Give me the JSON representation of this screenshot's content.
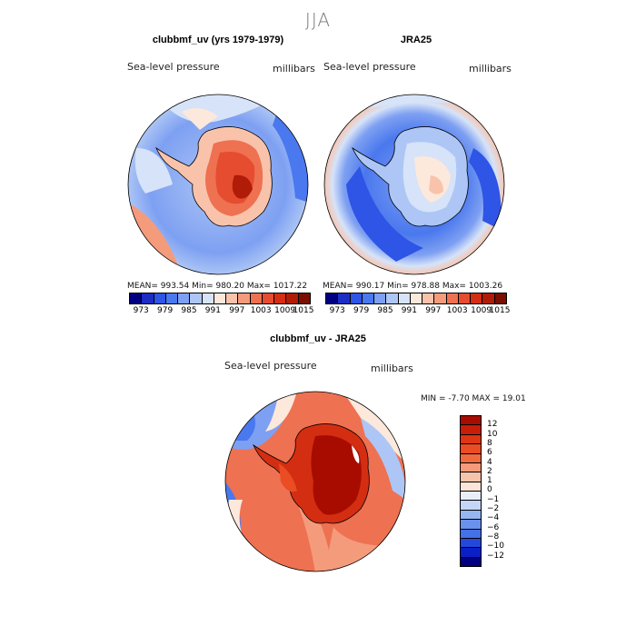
{
  "season": "JJA",
  "panels": [
    {
      "title": "clubbmf_uv (yrs 1979-1979)",
      "field": "Sea-level pressure",
      "units": "millibars",
      "stats": "MEAN= 993.54   Min= 980.20   Max= 1017.22"
    },
    {
      "title": "JRA25",
      "field": "Sea-level pressure",
      "units": "millibars",
      "stats": "MEAN= 990.17   Min= 978.88   Max= 1003.26"
    },
    {
      "title": "clubbmf_uv - JRA25",
      "field": "Sea-level pressure",
      "units": "millibars",
      "stats": "MIN =   -7.70  MAX =   19.01"
    }
  ],
  "colorbar_abs": {
    "labels": [
      "973",
      "979",
      "985",
      "991",
      "997",
      "1003",
      "1009",
      "1015"
    ],
    "colors": [
      "#000080",
      "#1c2ec4",
      "#2e55e6",
      "#4a78ee",
      "#7ea0f2",
      "#adc6f5",
      "#d6e3f8",
      "#fde8dc",
      "#f9c3ab",
      "#f49b7c",
      "#ee7151",
      "#e64c2f",
      "#d42e12",
      "#b01c08",
      "#7a0e02"
    ]
  },
  "colorbar_diff": {
    "labels": [
      "12",
      "10",
      "8",
      "6",
      "4",
      "2",
      "1",
      "0",
      "−1",
      "−2",
      "−4",
      "−6",
      "−8",
      "−10",
      "−12"
    ],
    "colors": [
      "#a80c00",
      "#c81d06",
      "#de3612",
      "#ea4c24",
      "#f06a3f",
      "#f49a7b",
      "#f8c3ab",
      "#fbe4d8",
      "#e8effb",
      "#c3d6f6",
      "#95b6f1",
      "#6a91ec",
      "#4470e8",
      "#2447de",
      "#0b1fc8",
      "#000080"
    ]
  }
}
